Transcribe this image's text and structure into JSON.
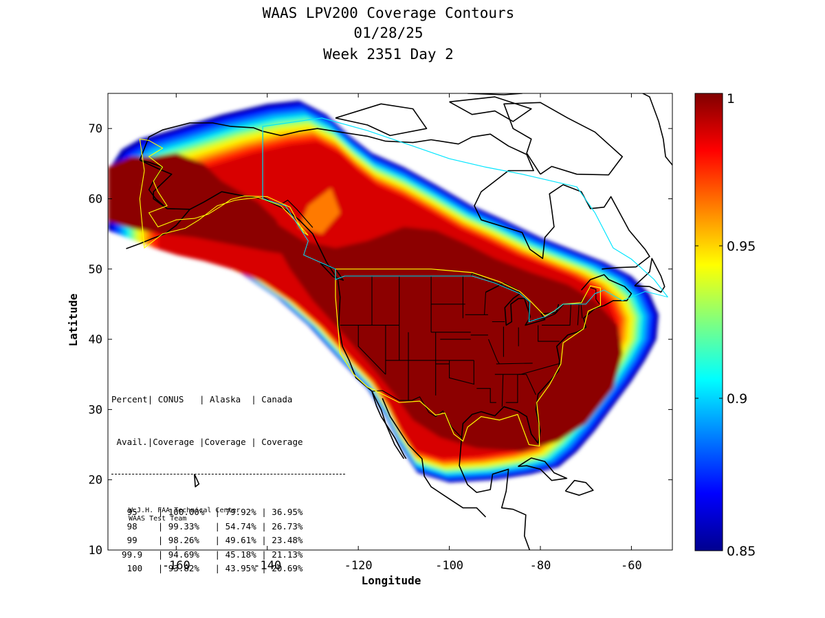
{
  "title": [
    "WAAS LPV200 Coverage Contours",
    "01/28/25",
    "Week 2351 Day 2"
  ],
  "axes": {
    "xlabel": "Longitude",
    "ylabel": "Latitude",
    "xlim": [
      -175,
      -51
    ],
    "ylim": [
      10,
      75
    ],
    "xticks": [
      -160,
      -140,
      -120,
      -100,
      -80,
      -60
    ],
    "yticks": [
      10,
      20,
      30,
      40,
      50,
      60,
      70
    ]
  },
  "colorbar": {
    "min": 0.85,
    "max": 1,
    "ticks": [
      "1",
      "0.95",
      "0.9",
      "0.85"
    ],
    "tick_values": [
      1,
      0.95,
      0.9,
      0.85
    ],
    "colormap": "jet"
  },
  "table": {
    "header_row1": [
      "Percent",
      "CONUS",
      "Alaska",
      "Canada"
    ],
    "header_row2": [
      "Avail.",
      "Coverage",
      "Coverage",
      "Coverage"
    ],
    "rows": [
      [
        "95",
        "100.00%",
        "79.92%",
        "36.95%"
      ],
      [
        "98",
        "99.33%",
        "54.74%",
        "26.73%"
      ],
      [
        "99",
        "98.26%",
        "49.61%",
        "23.48%"
      ],
      [
        "99.9",
        "94.69%",
        "45.18%",
        "21.13%"
      ],
      [
        "100",
        "93.82%",
        "43.95%",
        "20.69%"
      ]
    ]
  },
  "credit": [
    "W.J.H. FAA Technical Center",
    "WAAS Test Team"
  ],
  "colors": {
    "service_outline": "#ffff00",
    "region_outline": "#00e5ff",
    "coastline": "#000000"
  }
}
